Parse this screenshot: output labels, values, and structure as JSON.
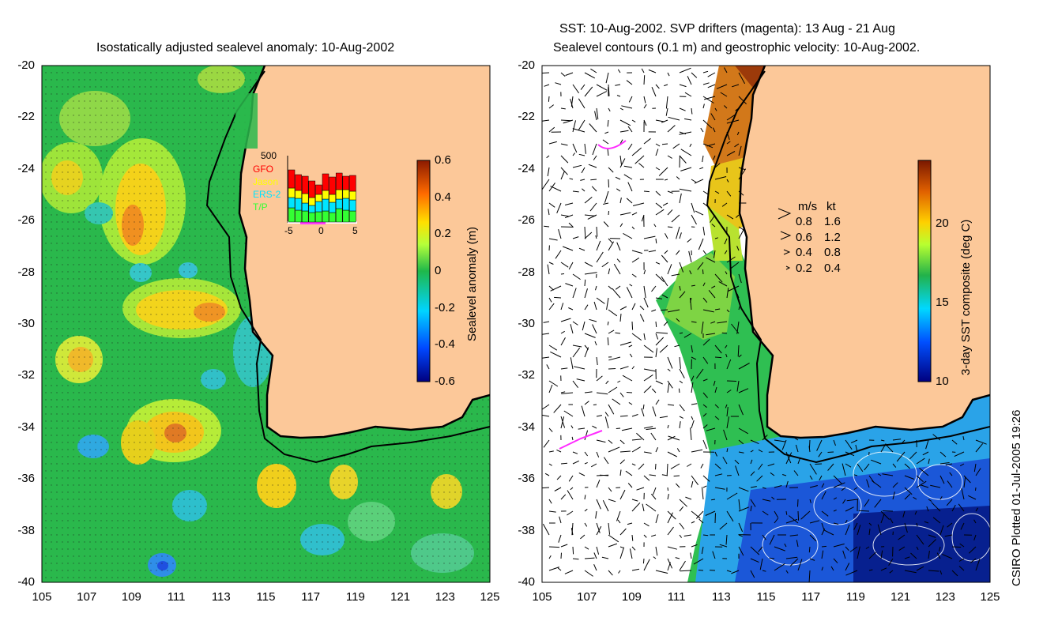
{
  "left_panel": {
    "title": "Isostatically adjusted sealevel anomaly: 10-Aug-2002",
    "colorbar": {
      "label": "Sealevel anomaly (m)",
      "ticks": [
        "0.6",
        "0.4",
        "0.2",
        "0",
        "-0.2",
        "-0.4",
        "-0.6"
      ],
      "range": [
        -0.6,
        0.6
      ]
    },
    "inset": {
      "ymax_label": "500",
      "legend": [
        {
          "name": "GFO",
          "color": "#ff0000"
        },
        {
          "name": "Jason",
          "color": "#ffff00"
        },
        {
          "name": "ERS-2",
          "color": "#00e5ff"
        },
        {
          "name": "T/P",
          "color": "#33ff33"
        }
      ],
      "xticks": [
        "-5",
        "0",
        "5"
      ]
    }
  },
  "right_panel": {
    "title_line1": "SST: 10-Aug-2002. SVP drifters (magenta): 13 Aug - 21 Aug",
    "title_line2": "Sealevel contours (0.1 m) and geostrophic velocity: 10-Aug-2002.",
    "colorbar": {
      "label": "3-day SST composite (deg C)",
      "ticks": [
        "20",
        "15",
        "10"
      ],
      "range": [
        10,
        24
      ]
    },
    "velocity_key": {
      "header_ms": "m/s",
      "header_kt": "kt",
      "rows": [
        {
          "ms": "0.8",
          "kt": "1.6"
        },
        {
          "ms": "0.6",
          "kt": "1.2"
        },
        {
          "ms": "0.4",
          "kt": "0.8"
        },
        {
          "ms": "0.2",
          "kt": "0.4"
        }
      ]
    }
  },
  "axes": {
    "y_ticks": [
      "-20",
      "-22",
      "-24",
      "-26",
      "-28",
      "-30",
      "-32",
      "-34",
      "-36",
      "-38",
      "-40"
    ],
    "x_ticks": [
      "105",
      "107",
      "109",
      "111",
      "113",
      "115",
      "117",
      "119",
      "121",
      "123",
      "125"
    ],
    "lat_range": [
      -40,
      -20
    ],
    "lon_range": [
      105,
      125
    ]
  },
  "credit": "CSIRO Plotted 01-Jul-2005 19:26",
  "colors": {
    "land": "#fcc899",
    "ocean_green": "#22b24a",
    "coast_line": "#000000"
  }
}
